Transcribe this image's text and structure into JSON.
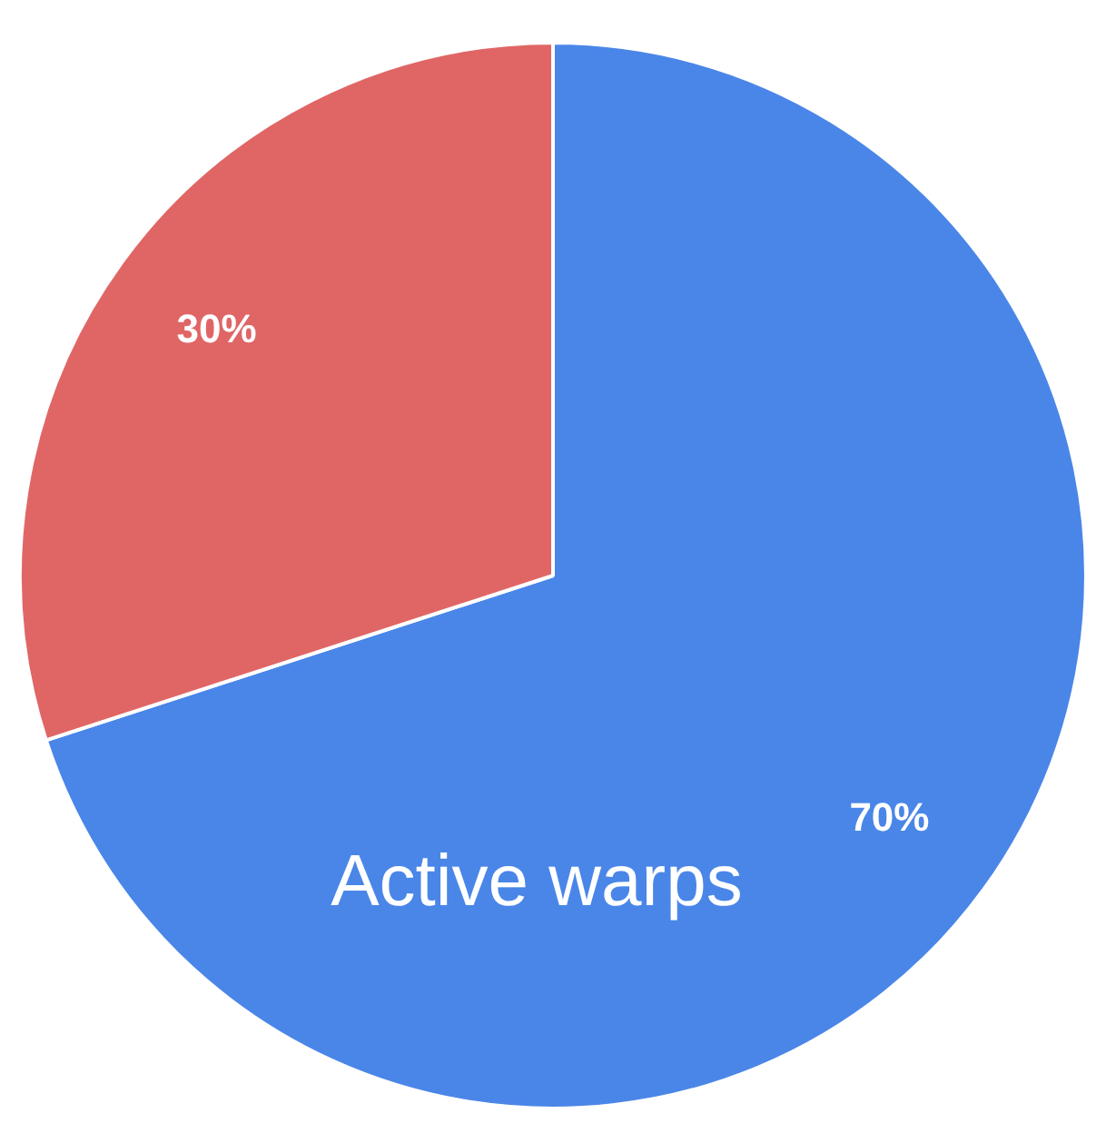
{
  "chart_data": {
    "type": "pie",
    "categories": [
      "Active warps",
      null
    ],
    "values": [
      70,
      30
    ],
    "colors": [
      "#4a86e8",
      "#e06666"
    ],
    "value_labels": [
      "70%",
      "30%"
    ],
    "legend": false
  }
}
